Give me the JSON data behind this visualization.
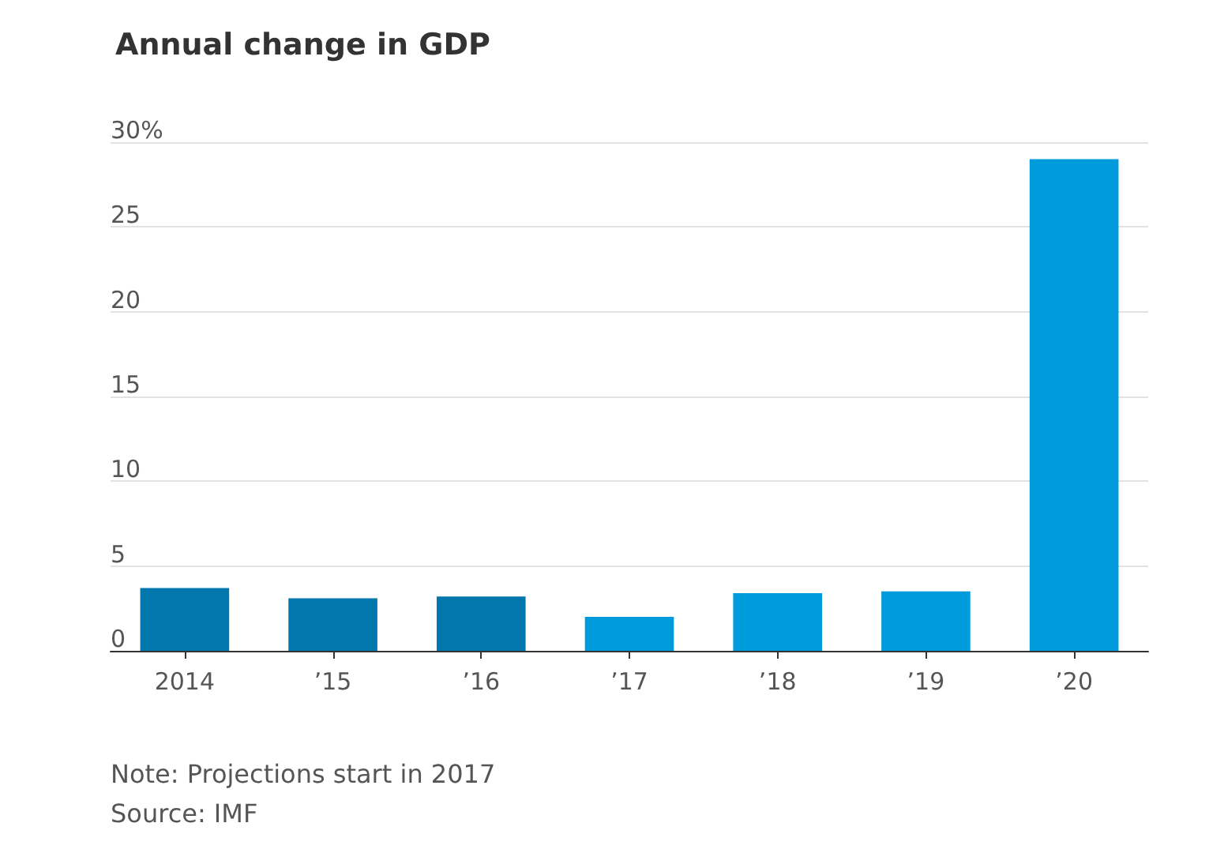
{
  "chart_data": {
    "type": "bar",
    "title": "Annual change in GDP",
    "categories": [
      "2014",
      "’15",
      "’16",
      "’17",
      "’18",
      "’19",
      "’20"
    ],
    "values": [
      3.7,
      3.1,
      3.2,
      2.0,
      3.4,
      3.5,
      29.0
    ],
    "colors": [
      "#0277ad",
      "#0277ad",
      "#0277ad",
      "#009bdb",
      "#009bdb",
      "#009bdb",
      "#009bdb"
    ],
    "ylim": [
      0,
      30
    ],
    "yticks": [
      0,
      5,
      10,
      15,
      20,
      25,
      {
        "value": 30,
        "label": "30%"
      }
    ],
    "grid": "y",
    "annotations": [
      "Note: Projections start in 2017",
      "Source: IMF"
    ]
  }
}
